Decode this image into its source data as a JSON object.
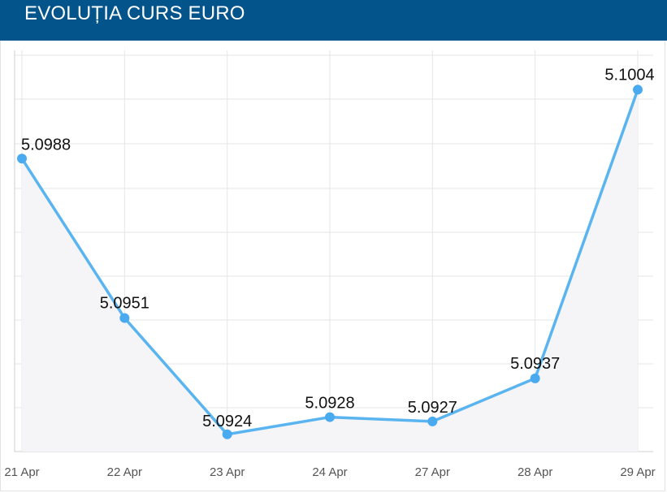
{
  "header": {
    "title": "EVOLUȚIA CURS EURO"
  },
  "colors": {
    "header_bg": "#02548b",
    "line": "#5ab4f0",
    "point": "#4aaaf0",
    "area": "#f5f5f7",
    "grid": "#e6e6e6"
  },
  "chart_data": {
    "type": "line",
    "title": "EVOLUȚIA CURS EURO",
    "xlabel": "",
    "ylabel": "",
    "categories": [
      "21 Apr",
      "22 Apr",
      "23 Apr",
      "24 Apr",
      "27 Apr",
      "28 Apr",
      "29 Apr"
    ],
    "series": [
      {
        "values": [
          5.0988,
          5.0951,
          5.0924,
          5.0928,
          5.0927,
          5.0937,
          5.1004
        ],
        "labels": [
          "5.0988",
          "5.0951",
          "5.0924",
          "5.0928",
          "5.0927",
          "5.0937",
          "5.1004"
        ]
      }
    ],
    "ylim": [
      5.092,
      5.1012
    ],
    "grid": true,
    "legend": "none",
    "y_tick_labels": "hidden"
  }
}
